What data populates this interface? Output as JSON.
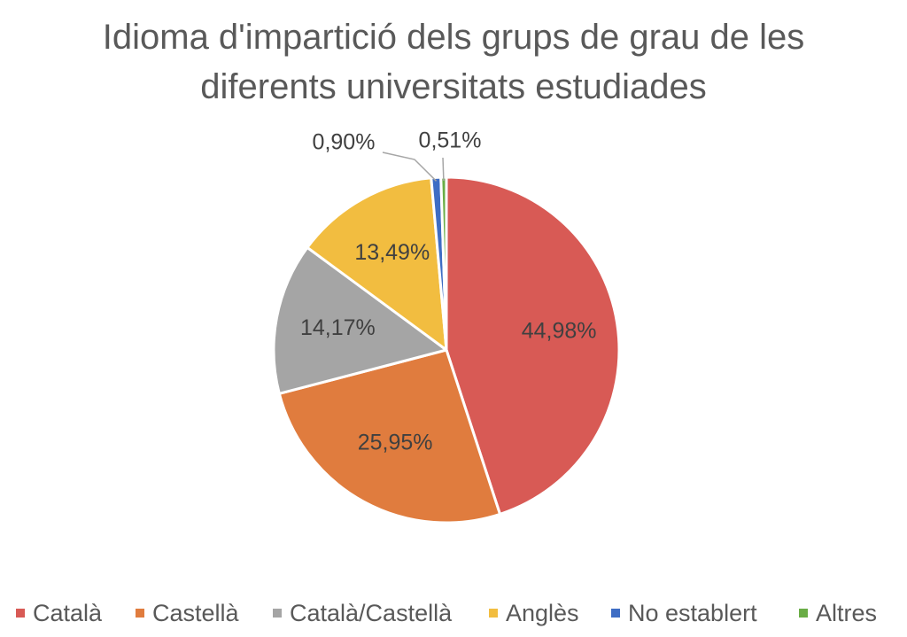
{
  "chart_data": {
    "type": "pie",
    "title_lines": [
      "Idioma d'impartició dels grups de grau de les",
      "diferents universitats estudiades"
    ],
    "categories": [
      "Català",
      "Castellà",
      "Català/Castellà",
      "Anglès",
      "No establert",
      "Altres"
    ],
    "values": [
      44.98,
      25.95,
      14.17,
      13.49,
      0.9,
      0.51
    ],
    "data_labels": [
      "44,98%",
      "25,95%",
      "14,17%",
      "13,49%",
      "0,90%",
      "0,51%"
    ],
    "colors": [
      "#d85a55",
      "#e07c3e",
      "#a5a5a5",
      "#f2bd40",
      "#3e6dc4",
      "#6aad46"
    ],
    "legend_position": "bottom"
  }
}
